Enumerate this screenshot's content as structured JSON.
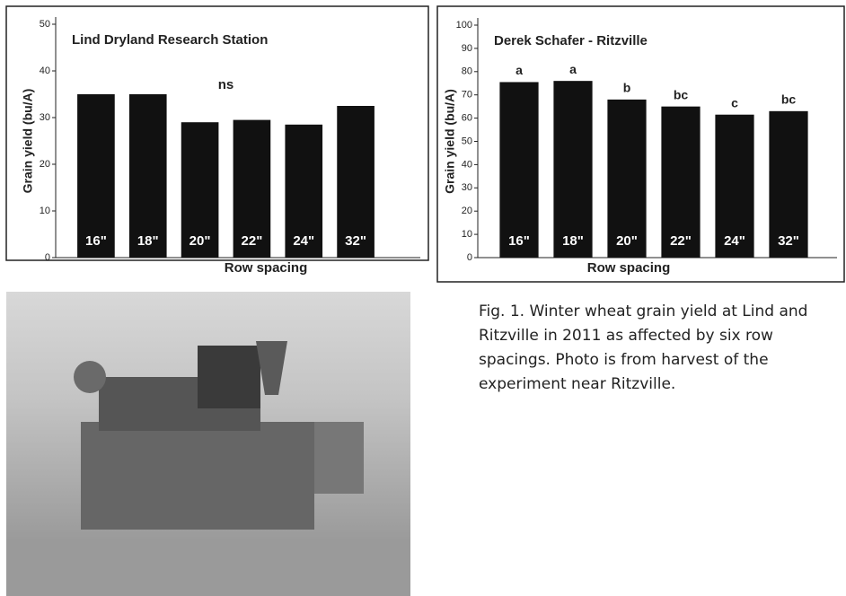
{
  "chart_data": [
    {
      "type": "bar",
      "title": "Lind Dryland Research Station",
      "x_label": "Row spacing",
      "y_label": "Grain yield (bu/A)",
      "categories": [
        "16\"",
        "18\"",
        "20\"",
        "22\"",
        "24\"",
        "32\""
      ],
      "values": [
        35,
        35,
        29,
        29.5,
        28.5,
        32.5
      ],
      "color": "#111111",
      "ylim": [
        0,
        50
      ],
      "yticks": [
        0,
        10,
        20,
        30,
        40,
        50
      ],
      "annotation": "ns"
    },
    {
      "type": "bar",
      "title": "Derek Schafer - Ritzville",
      "x_label": "Row spacing",
      "y_label": "Grain yield (bu/A)",
      "categories": [
        "16\"",
        "18\"",
        "20\"",
        "22\"",
        "24\"",
        "32\""
      ],
      "values": [
        75.5,
        76,
        68,
        65,
        61.5,
        63
      ],
      "color": "#111111",
      "ylim": [
        0,
        100
      ],
      "yticks": [
        0,
        10,
        20,
        30,
        40,
        50,
        60,
        70,
        80,
        90,
        100
      ],
      "bar_annotations": [
        "a",
        "a",
        "b",
        "bc",
        "c",
        "bc"
      ]
    }
  ],
  "caption": "Fig. 1.  Winter wheat grain yield at Lind and Ritzville in 2011 as affected by six row spacings. Photo is from harvest of the experiment near Ritzville."
}
